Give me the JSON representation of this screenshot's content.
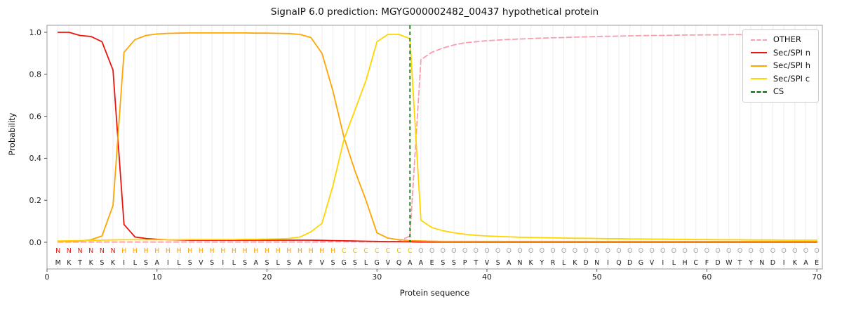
{
  "title": "SignalP 6.0 prediction: MGYG000002482_00437 hypothetical protein",
  "axes": {
    "xlabel": "Protein sequence",
    "ylabel": "Probability",
    "xticks": [
      0,
      10,
      20,
      30,
      40,
      50,
      60,
      70
    ],
    "yticks": [
      0,
      0.2,
      0.4,
      0.6,
      0.8,
      1.0
    ]
  },
  "legend": [
    {
      "label": "OTHER",
      "color": "#f5a0ae",
      "dashed": true
    },
    {
      "label": "Sec/SPI n",
      "color": "#e9150d",
      "dashed": false
    },
    {
      "label": "Sec/SPI h",
      "color": "#ffa502",
      "dashed": false
    },
    {
      "label": "Sec/SPI c",
      "color": "#ffd500",
      "dashed": false
    },
    {
      "label": "CS",
      "color": "#006400",
      "dashed": true
    }
  ],
  "chart_data": {
    "type": "line",
    "title": "SignalP 6.0 prediction: MGYG000002482_00437 hypothetical protein",
    "xlabel": "Protein sequence",
    "ylabel": "Probability",
    "xlim": [
      0,
      70.5
    ],
    "ylim": [
      -0.13,
      1.04
    ],
    "grid": "vertical-per-residue",
    "legend_position": "upper-right",
    "x": [
      1,
      2,
      3,
      4,
      5,
      6,
      7,
      8,
      9,
      10,
      11,
      12,
      13,
      14,
      15,
      16,
      17,
      18,
      19,
      20,
      21,
      22,
      23,
      24,
      25,
      26,
      27,
      28,
      29,
      30,
      31,
      32,
      33,
      34,
      35,
      36,
      37,
      38,
      39,
      40,
      41,
      42,
      43,
      44,
      45,
      46,
      47,
      48,
      49,
      50,
      51,
      52,
      53,
      54,
      55,
      56,
      57,
      58,
      59,
      60,
      61,
      62,
      63,
      64,
      65,
      66,
      67,
      68,
      69,
      70
    ],
    "series": [
      {
        "name": "OTHER",
        "color": "#f5a0ae",
        "dashed": true,
        "values": [
          0.001,
          0.001,
          0.001,
          0.001,
          0.001,
          0.001,
          0.001,
          0.001,
          0.001,
          0.001,
          0.001,
          0.001,
          0.001,
          0.001,
          0.001,
          0.001,
          0.001,
          0.001,
          0.001,
          0.001,
          0.001,
          0.001,
          0.001,
          0.001,
          0.001,
          0.002,
          0.002,
          0.002,
          0.002,
          0.003,
          0.003,
          0.005,
          0.03,
          0.87,
          0.905,
          0.925,
          0.94,
          0.95,
          0.955,
          0.96,
          0.963,
          0.966,
          0.968,
          0.97,
          0.972,
          0.974,
          0.975,
          0.977,
          0.978,
          0.98,
          0.981,
          0.982,
          0.983,
          0.984,
          0.985,
          0.985,
          0.986,
          0.987,
          0.987,
          0.988,
          0.988,
          0.989,
          0.989,
          0.989,
          0.99,
          0.99,
          0.99,
          0.99,
          0.99,
          0.99
        ]
      },
      {
        "name": "Sec/SPI n",
        "color": "#e9150d",
        "dashed": false,
        "values": [
          1.0,
          1.0,
          0.985,
          0.98,
          0.955,
          0.82,
          0.085,
          0.025,
          0.018,
          0.014,
          0.012,
          0.011,
          0.01,
          0.01,
          0.01,
          0.01,
          0.01,
          0.01,
          0.01,
          0.01,
          0.01,
          0.01,
          0.01,
          0.01,
          0.009,
          0.008,
          0.007,
          0.006,
          0.005,
          0.004,
          0.003,
          0.003,
          0.002,
          0.001,
          0.001,
          0.001,
          0.001,
          0.001,
          0.001,
          0.001,
          0.001,
          0.001,
          0.001,
          0.001,
          0.001,
          0.001,
          0.001,
          0.001,
          0.001,
          0.001,
          0.001,
          0.001,
          0.001,
          0.001,
          0.001,
          0.001,
          0.001,
          0.001,
          0.001,
          0.001,
          0.001,
          0.001,
          0.001,
          0.001,
          0.001,
          0.001,
          0.001,
          0.001,
          0.001,
          0.001
        ]
      },
      {
        "name": "Sec/SPI h",
        "color": "#ffa502",
        "dashed": false,
        "values": [
          0.004,
          0.004,
          0.006,
          0.012,
          0.03,
          0.175,
          0.905,
          0.965,
          0.985,
          0.992,
          0.995,
          0.996,
          0.997,
          0.997,
          0.997,
          0.997,
          0.997,
          0.997,
          0.996,
          0.996,
          0.995,
          0.994,
          0.99,
          0.975,
          0.9,
          0.72,
          0.5,
          0.34,
          0.2,
          0.045,
          0.02,
          0.012,
          0.008,
          0.006,
          0.005,
          0.004,
          0.004,
          0.004,
          0.004,
          0.004,
          0.004,
          0.004,
          0.004,
          0.004,
          0.004,
          0.004,
          0.004,
          0.004,
          0.004,
          0.004,
          0.004,
          0.004,
          0.004,
          0.004,
          0.004,
          0.004,
          0.004,
          0.004,
          0.004,
          0.004,
          0.004,
          0.004,
          0.004,
          0.004,
          0.004,
          0.004,
          0.004,
          0.004,
          0.004,
          0.004
        ]
      },
      {
        "name": "Sec/SPI c",
        "color": "#ffd500",
        "dashed": false,
        "values": [
          0.006,
          0.007,
          0.008,
          0.009,
          0.01,
          0.011,
          0.012,
          0.012,
          0.012,
          0.012,
          0.012,
          0.012,
          0.013,
          0.013,
          0.013,
          0.013,
          0.013,
          0.014,
          0.014,
          0.015,
          0.016,
          0.018,
          0.025,
          0.05,
          0.09,
          0.27,
          0.49,
          0.63,
          0.77,
          0.955,
          0.99,
          0.99,
          0.97,
          0.105,
          0.07,
          0.055,
          0.045,
          0.038,
          0.033,
          0.03,
          0.028,
          0.026,
          0.024,
          0.023,
          0.022,
          0.021,
          0.02,
          0.019,
          0.019,
          0.018,
          0.017,
          0.017,
          0.016,
          0.016,
          0.015,
          0.015,
          0.014,
          0.014,
          0.013,
          0.013,
          0.012,
          0.012,
          0.012,
          0.011,
          0.011,
          0.011,
          0.01,
          0.01,
          0.01,
          0.01
        ]
      }
    ],
    "cs_marker": {
      "x": 33,
      "label": "CS",
      "color": "#006400"
    },
    "sequence": "MKTKSKILSAILSVSILSASLSAFVSGSLGVQAAESSPTVSANKYRLKDNIQDGVILHCFDWTYNDIKAE",
    "region_labels": "NNNNNNHHHHHHHHHHHHHHHHHHHHCCCCCCCOOOOOOOOOOOOOOOOOOOOOOOOOOOOOOOOOOOOO",
    "label_colors": {
      "N": "#e9150d",
      "H": "#ffa502",
      "C": "#f2c100",
      "O": "#a6a6a6"
    },
    "sequence_color": "#1a1a1a"
  }
}
